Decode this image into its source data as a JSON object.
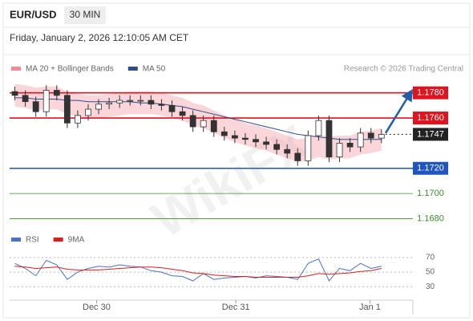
{
  "header": {
    "symbol": "EUR/USD",
    "timeframe": "30 MIN",
    "timestamp": "Friday, January 2, 2026 12:10:05 AM CET"
  },
  "watermark": "WikiFX",
  "chart_data": [
    {
      "type": "candlestick",
      "source": "Research © 2026 Trading Central",
      "x": [
        0,
        1,
        2,
        3,
        4,
        5,
        6,
        7,
        8,
        9,
        10,
        11,
        12,
        13,
        14,
        15,
        16,
        17,
        18,
        19,
        20,
        21,
        22,
        23,
        24,
        25,
        26,
        27,
        28,
        29,
        30,
        31,
        32,
        33,
        34,
        35
      ],
      "xlim": [
        -0.5,
        38
      ],
      "ylim": [
        1.1672,
        1.179
      ],
      "up_color": "#ffffff",
      "down_color": "#333333",
      "open": [
        1.1781,
        1.1778,
        1.1773,
        1.1765,
        1.1782,
        1.1778,
        1.1756,
        1.1762,
        1.1767,
        1.1771,
        1.1772,
        1.1774,
        1.1774,
        1.1774,
        1.1771,
        1.177,
        1.1765,
        1.1762,
        1.1753,
        1.1758,
        1.1749,
        1.1746,
        1.1744,
        1.1743,
        1.1741,
        1.1739,
        1.1735,
        1.1732,
        1.1726,
        1.1746,
        1.1758,
        1.1729,
        1.174,
        1.1737,
        1.1748,
        1.1744
      ],
      "high": [
        1.1785,
        1.1782,
        1.1777,
        1.1786,
        1.1786,
        1.1782,
        1.1766,
        1.1771,
        1.1775,
        1.1776,
        1.1778,
        1.1778,
        1.1778,
        1.1778,
        1.1775,
        1.1774,
        1.1769,
        1.1766,
        1.1762,
        1.1762,
        1.1753,
        1.175,
        1.1748,
        1.1747,
        1.1745,
        1.1743,
        1.1739,
        1.1736,
        1.175,
        1.1762,
        1.1762,
        1.1744,
        1.1744,
        1.1752,
        1.1752,
        1.1751
      ],
      "low": [
        1.1774,
        1.1769,
        1.1761,
        1.1761,
        1.1774,
        1.1752,
        1.1752,
        1.1758,
        1.1763,
        1.1767,
        1.1768,
        1.177,
        1.177,
        1.1767,
        1.1766,
        1.1761,
        1.1758,
        1.1749,
        1.1749,
        1.1745,
        1.1742,
        1.174,
        1.1739,
        1.1737,
        1.1735,
        1.1731,
        1.1728,
        1.1722,
        1.1722,
        1.1742,
        1.1725,
        1.1725,
        1.1733,
        1.1733,
        1.174,
        1.174
      ],
      "close": [
        1.1778,
        1.1773,
        1.1765,
        1.1782,
        1.1778,
        1.1756,
        1.1762,
        1.1767,
        1.1771,
        1.1772,
        1.1774,
        1.1774,
        1.1774,
        1.1771,
        1.177,
        1.1765,
        1.1762,
        1.1753,
        1.1758,
        1.1749,
        1.1746,
        1.1744,
        1.1743,
        1.1741,
        1.1739,
        1.1735,
        1.1732,
        1.1726,
        1.1746,
        1.1758,
        1.1729,
        1.174,
        1.1737,
        1.1748,
        1.1744,
        1.1747
      ],
      "overlays": [
        {
          "name": "MA 20 + Bollinger Bands",
          "color": "#f08a95",
          "upper": [
            1.1787,
            1.1786,
            1.1784,
            1.1785,
            1.1785,
            1.1781,
            1.1779,
            1.1778,
            1.1778,
            1.1779,
            1.178,
            1.1781,
            1.1781,
            1.1781,
            1.178,
            1.1778,
            1.1776,
            1.1772,
            1.177,
            1.1766,
            1.1762,
            1.1759,
            1.1756,
            1.1754,
            1.1752,
            1.1749,
            1.1746,
            1.1743,
            1.1744,
            1.1747,
            1.1745,
            1.1746,
            1.1746,
            1.1749,
            1.175,
            1.1752
          ],
          "lower": [
            1.1769,
            1.1768,
            1.1766,
            1.1767,
            1.1767,
            1.1763,
            1.1761,
            1.176,
            1.176,
            1.1761,
            1.1762,
            1.1763,
            1.1763,
            1.1763,
            1.1762,
            1.176,
            1.1758,
            1.1754,
            1.1752,
            1.1748,
            1.1744,
            1.1741,
            1.1738,
            1.1736,
            1.1734,
            1.1731,
            1.1728,
            1.1725,
            1.1726,
            1.1729,
            1.1727,
            1.1728,
            1.1728,
            1.1731,
            1.1732,
            1.1734
          ]
        },
        {
          "name": "MA 50",
          "color": "#2c4f8a",
          "values": [
            1.1776,
            1.1776,
            1.1775,
            1.1775,
            1.1775,
            1.1774,
            1.1774,
            1.1773,
            1.1773,
            1.1773,
            1.1773,
            1.1773,
            1.1772,
            1.1772,
            1.1771,
            1.177,
            1.1769,
            1.1767,
            1.1765,
            1.1763,
            1.1761,
            1.1759,
            1.1757,
            1.1755,
            1.1753,
            1.1751,
            1.1749,
            1.1747,
            1.1746,
            1.1745,
            1.1744,
            1.1743,
            1.1743,
            1.1743,
            1.1743,
            1.1743
          ]
        }
      ],
      "levels": [
        {
          "value": 1.178,
          "label": "1.1780",
          "color": "#e0141e",
          "style": "box",
          "line": "solid"
        },
        {
          "value": 1.176,
          "label": "1.1760",
          "color": "#e0141e",
          "style": "box",
          "line": "solid"
        },
        {
          "value": 1.1747,
          "label": "1.1747",
          "color": "#222222",
          "style": "box",
          "line": "dotted"
        },
        {
          "value": 1.172,
          "label": "1.1720",
          "color": "#1f55c0",
          "style": "box",
          "line": "solid"
        },
        {
          "value": 1.17,
          "label": "1.1700",
          "color": "#3c8a2e",
          "style": "text",
          "line": "thin"
        },
        {
          "value": 1.168,
          "label": "1.1680",
          "color": "#3c8a2e",
          "style": "text",
          "line": "thin"
        }
      ],
      "forecast": {
        "color": "#1f5fa8",
        "x": [
          35.4,
          37.7
        ],
        "values": [
          1.1748,
          1.1779
        ]
      }
    },
    {
      "type": "line",
      "x": [
        0,
        1,
        2,
        3,
        4,
        5,
        6,
        7,
        8,
        9,
        10,
        11,
        12,
        13,
        14,
        15,
        16,
        17,
        18,
        19,
        20,
        21,
        22,
        23,
        24,
        25,
        26,
        27,
        28,
        29,
        30,
        31,
        32,
        33,
        34,
        35
      ],
      "xlim": [
        -0.5,
        38
      ],
      "xticks": [
        {
          "value": 7.8,
          "label": "Dec 30"
        },
        {
          "value": 21.1,
          "label": "Dec 31"
        },
        {
          "value": 33.9,
          "label": "Jan 1"
        }
      ],
      "ylim": [
        16,
        82
      ],
      "yticks": [
        70,
        50,
        30
      ],
      "series": [
        {
          "name": "RSI",
          "color": "#4c72c4",
          "values": [
            62,
            55,
            45,
            66,
            60,
            40,
            50,
            55,
            58,
            57,
            60,
            58,
            57,
            52,
            50,
            45,
            44,
            38,
            48,
            40,
            42,
            43,
            44,
            42,
            45,
            44,
            43,
            40,
            62,
            68,
            38,
            55,
            52,
            62,
            55,
            58
          ]
        },
        {
          "name": "9MA",
          "color": "#d62020",
          "values": [
            58,
            57,
            55,
            56,
            57,
            54,
            53,
            53,
            53,
            54,
            55,
            56,
            57,
            57,
            56,
            54,
            52,
            49,
            48,
            46,
            45,
            44,
            44,
            43,
            43,
            43,
            43,
            43,
            45,
            48,
            47,
            48,
            49,
            51,
            52,
            55
          ]
        }
      ]
    }
  ]
}
